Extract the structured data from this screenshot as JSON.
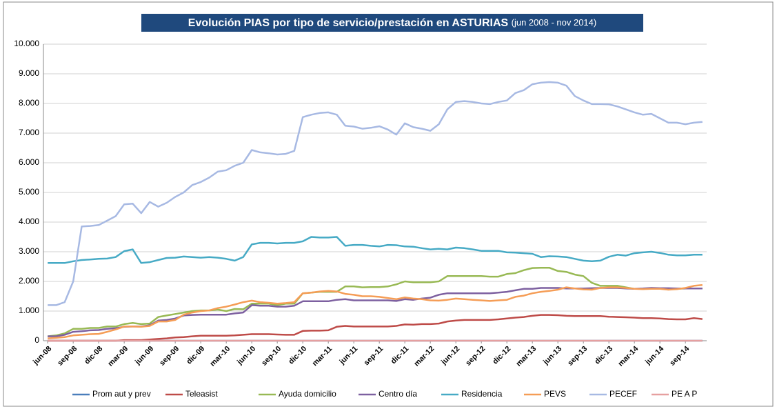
{
  "chart_data": {
    "type": "line",
    "title": "Evolución PIAS por tipo de servicio/prestación en ASTURIAS",
    "subtitle": "(jun 2008 - nov 2014)",
    "categories": [
      "jun-08",
      null,
      null,
      "sep-08",
      null,
      null,
      "dic-08",
      null,
      null,
      "mar-09",
      null,
      null,
      "jun-09",
      null,
      null,
      "sep-09",
      null,
      null,
      "dic-09",
      null,
      null,
      "mar-10",
      null,
      null,
      "jun-10",
      null,
      null,
      "sep-10",
      null,
      null,
      "dic-10",
      null,
      null,
      "mar-11",
      null,
      null,
      "jun-11",
      null,
      null,
      "sep-11",
      null,
      null,
      "dic-11",
      null,
      null,
      "mar-12",
      null,
      null,
      "jun-12",
      null,
      null,
      "sep-12",
      null,
      null,
      "dic-12",
      null,
      null,
      "mar-13",
      null,
      null,
      "jun-13",
      null,
      null,
      "sep-13",
      null,
      null,
      "dic-13",
      null,
      null,
      "mar-14",
      null,
      null,
      "jun-14",
      null,
      null,
      "sep-14",
      null,
      null
    ],
    "series": [
      {
        "name": "Prom aut y prev",
        "color": "#4a7ebb",
        "values": [
          0,
          0,
          0,
          0,
          0,
          0,
          0,
          0,
          0,
          0,
          0,
          0,
          0,
          0,
          0,
          0,
          0,
          0,
          0,
          0,
          0,
          0,
          0,
          0,
          0,
          0,
          0,
          0,
          0,
          0,
          0,
          0,
          0,
          0,
          0,
          0,
          0,
          0,
          0,
          0,
          0,
          0,
          0,
          0,
          0,
          0,
          0,
          0,
          0,
          0,
          0,
          0,
          0,
          0,
          0,
          0,
          0,
          0,
          0,
          0,
          0,
          0,
          0,
          0,
          0,
          0,
          0,
          0,
          0,
          0,
          0,
          0,
          0,
          0,
          0,
          0,
          0,
          0
        ]
      },
      {
        "name": "Teleasist",
        "color": "#be4b48",
        "values": [
          0,
          0,
          0,
          0,
          0,
          0,
          0,
          0,
          0,
          20,
          20,
          20,
          40,
          60,
          80,
          110,
          120,
          150,
          170,
          170,
          170,
          170,
          180,
          200,
          220,
          220,
          220,
          210,
          200,
          200,
          330,
          340,
          340,
          350,
          470,
          500,
          480,
          480,
          480,
          480,
          480,
          500,
          550,
          540,
          560,
          560,
          580,
          650,
          680,
          700,
          700,
          700,
          700,
          720,
          750,
          780,
          800,
          840,
          870,
          870,
          860,
          840,
          830,
          830,
          830,
          830,
          810,
          800,
          790,
          780,
          760,
          760,
          750,
          730,
          720,
          720,
          760,
          730
        ]
      },
      {
        "name": "Ayuda domicilio",
        "color": "#98b954",
        "values": [
          150,
          180,
          250,
          400,
          400,
          430,
          430,
          480,
          480,
          560,
          600,
          560,
          580,
          800,
          850,
          900,
          950,
          1000,
          1020,
          1020,
          1050,
          1000,
          1070,
          1060,
          1250,
          1250,
          1250,
          1200,
          1250,
          1250,
          1600,
          1620,
          1650,
          1650,
          1650,
          1830,
          1830,
          1800,
          1810,
          1810,
          1830,
          1900,
          2000,
          1970,
          1970,
          1970,
          2000,
          2180,
          2180,
          2180,
          2180,
          2180,
          2160,
          2160,
          2250,
          2280,
          2380,
          2450,
          2460,
          2460,
          2350,
          2320,
          2230,
          2180,
          1950,
          1850,
          1850,
          1850,
          1800,
          1750,
          1750,
          1770,
          1760,
          1760,
          1750,
          1760,
          1760,
          1760
        ]
      },
      {
        "name": "Centro día",
        "color": "#7d60a0",
        "values": [
          150,
          150,
          200,
          300,
          320,
          350,
          360,
          400,
          420,
          470,
          480,
          480,
          520,
          680,
          700,
          750,
          850,
          870,
          880,
          880,
          880,
          880,
          920,
          950,
          1200,
          1180,
          1180,
          1150,
          1150,
          1180,
          1330,
          1330,
          1330,
          1330,
          1380,
          1400,
          1360,
          1360,
          1360,
          1360,
          1360,
          1340,
          1400,
          1380,
          1420,
          1450,
          1550,
          1600,
          1600,
          1600,
          1600,
          1600,
          1600,
          1620,
          1650,
          1700,
          1750,
          1750,
          1780,
          1780,
          1780,
          1760,
          1760,
          1760,
          1770,
          1780,
          1780,
          1780,
          1760,
          1750,
          1760,
          1780,
          1770,
          1770,
          1760,
          1760,
          1760,
          1760
        ]
      },
      {
        "name": "Residencia",
        "color": "#46aac5",
        "values": [
          2620,
          2620,
          2620,
          2680,
          2720,
          2740,
          2760,
          2770,
          2820,
          3020,
          3080,
          2620,
          2650,
          2720,
          2790,
          2800,
          2840,
          2820,
          2800,
          2820,
          2800,
          2760,
          2700,
          2820,
          3250,
          3300,
          3300,
          3280,
          3300,
          3300,
          3350,
          3500,
          3480,
          3480,
          3500,
          3200,
          3230,
          3230,
          3200,
          3180,
          3230,
          3220,
          3180,
          3170,
          3120,
          3080,
          3100,
          3080,
          3140,
          3120,
          3080,
          3030,
          3030,
          3030,
          2980,
          2970,
          2950,
          2930,
          2820,
          2850,
          2840,
          2820,
          2760,
          2700,
          2680,
          2700,
          2830,
          2900,
          2870,
          2950,
          2980,
          3000,
          2960,
          2900,
          2880,
          2880,
          2900,
          2900
        ]
      },
      {
        "name": "PEVS",
        "color": "#f59d56",
        "values": [
          80,
          100,
          120,
          180,
          200,
          220,
          230,
          300,
          380,
          480,
          480,
          470,
          500,
          650,
          650,
          700,
          880,
          950,
          1000,
          1020,
          1100,
          1150,
          1220,
          1300,
          1350,
          1300,
          1280,
          1250,
          1270,
          1300,
          1600,
          1620,
          1660,
          1680,
          1660,
          1580,
          1550,
          1500,
          1500,
          1480,
          1440,
          1400,
          1460,
          1420,
          1400,
          1360,
          1350,
          1380,
          1420,
          1400,
          1380,
          1360,
          1340,
          1360,
          1380,
          1480,
          1520,
          1600,
          1650,
          1680,
          1720,
          1800,
          1760,
          1730,
          1720,
          1780,
          1800,
          1800,
          1780,
          1750,
          1740,
          1750,
          1750,
          1720,
          1740,
          1780,
          1850,
          1880
        ]
      },
      {
        "name": "PECEF",
        "color": "#a7b9e3",
        "values": [
          1200,
          1200,
          1300,
          2000,
          3850,
          3870,
          3900,
          4050,
          4200,
          4600,
          4620,
          4300,
          4680,
          4520,
          4650,
          4850,
          5000,
          5250,
          5350,
          5500,
          5700,
          5750,
          5900,
          6000,
          6430,
          6350,
          6320,
          6280,
          6300,
          6400,
          7540,
          7620,
          7680,
          7700,
          7620,
          7250,
          7220,
          7150,
          7180,
          7230,
          7120,
          6950,
          7330,
          7200,
          7150,
          7080,
          7300,
          7800,
          8050,
          8080,
          8050,
          8000,
          7980,
          8050,
          8100,
          8350,
          8450,
          8650,
          8700,
          8720,
          8700,
          8600,
          8250,
          8100,
          7980,
          7980,
          7970,
          7900,
          7800,
          7700,
          7620,
          7650,
          7500,
          7350,
          7350,
          7300,
          7350,
          7380
        ]
      },
      {
        "name": "PE A P",
        "color": "#e6a0a0",
        "values": [
          0,
          0,
          0,
          0,
          0,
          0,
          0,
          0,
          0,
          0,
          0,
          0,
          0,
          0,
          0,
          0,
          0,
          0,
          0,
          0,
          0,
          0,
          0,
          0,
          0,
          0,
          0,
          0,
          0,
          0,
          0,
          0,
          0,
          0,
          0,
          0,
          0,
          0,
          0,
          0,
          0,
          0,
          0,
          0,
          0,
          0,
          0,
          0,
          0,
          0,
          0,
          0,
          0,
          0,
          0,
          0,
          0,
          0,
          0,
          0,
          0,
          0,
          0,
          0,
          0,
          0,
          0,
          0,
          0,
          0,
          0,
          0,
          0,
          0,
          0,
          0,
          0,
          0
        ]
      }
    ],
    "ylim": [
      0,
      10000
    ],
    "yticks": [
      0,
      {
        "value": 1000,
        "label": "1.000"
      },
      {
        "value": 2000,
        "label": "2.000"
      },
      {
        "value": 3000,
        "label": "3.000"
      },
      {
        "value": 4000,
        "label": "4.000"
      },
      {
        "value": 5000,
        "label": "5.000"
      },
      {
        "value": 6000,
        "label": "6.000"
      },
      {
        "value": 7000,
        "label": "7.000"
      },
      {
        "value": 8000,
        "label": "8.000"
      },
      {
        "value": 9000,
        "label": "9.000"
      },
      {
        "value": 10000,
        "label": "10.000"
      }
    ],
    "grid": true,
    "legend": "bottom"
  }
}
